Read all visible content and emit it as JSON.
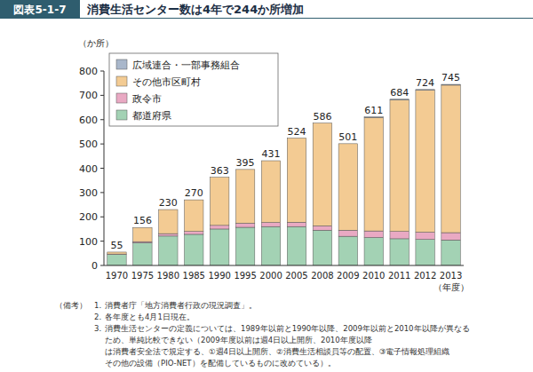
{
  "chart_data": {
    "type": "bar",
    "stacked": true,
    "figure_label": "図表5-1-7",
    "title": "消費生活センター数は4年で244か所増加",
    "y_label": "（か所）",
    "x_label": "（年度）",
    "categories": [
      "1970",
      "1975",
      "1980",
      "1985",
      "1990",
      "1995",
      "2000",
      "2005",
      "2008",
      "2009",
      "2010",
      "2011",
      "2012",
      "2013"
    ],
    "series": [
      {
        "name": "都道府県",
        "color": "#a3d2b4",
        "values": [
          45,
          93,
          121,
          128,
          150,
          157,
          160,
          160,
          145,
          120,
          115,
          110,
          107,
          105
        ]
      },
      {
        "name": "政令市",
        "color": "#e9a9c3",
        "values": [
          2,
          5,
          10,
          12,
          15,
          17,
          17,
          18,
          18,
          25,
          27,
          30,
          30,
          30
        ]
      },
      {
        "name": "その他市区町村",
        "color": "#f3cb93",
        "values": [
          8,
          58,
          99,
          130,
          198,
          221,
          254,
          346,
          423,
          356,
          467,
          541,
          584,
          607
        ]
      },
      {
        "name": "広域連合・一部事務組合",
        "color": "#a9b7cb",
        "values": [
          0,
          0,
          0,
          0,
          0,
          0,
          0,
          0,
          0,
          0,
          2,
          3,
          3,
          3
        ]
      }
    ],
    "totals": [
      55,
      156,
      230,
      270,
      363,
      395,
      431,
      524,
      586,
      501,
      611,
      684,
      724,
      745
    ],
    "ylim": [
      0,
      800
    ],
    "yticks": [
      0,
      100,
      200,
      300,
      400,
      500,
      600,
      700,
      800
    ],
    "grid": false,
    "legend": "upper left"
  },
  "notes": {
    "label": "（備考）",
    "items": [
      {
        "number": "1.",
        "lines": [
          "消費者庁「地方消費者行政の現況調査」。"
        ]
      },
      {
        "number": "2.",
        "lines": [
          "各年度とも4月1日現在。"
        ]
      },
      {
        "number": "3.",
        "lines": [
          "消費生活センターの定義については、1989年以前と1990年以降、2009年以前と2010年以降が異なる",
          "ため、単純比較できない（2009年度以前は週4日以上開所、2010年度以降",
          "は消費者安全法で規定する、①週4日以上開所、②消費生活相談員等の配置、③電子情報処理組織",
          "その他の設備（PIO-NET）を配備しているものに改めている）。"
        ]
      }
    ]
  }
}
